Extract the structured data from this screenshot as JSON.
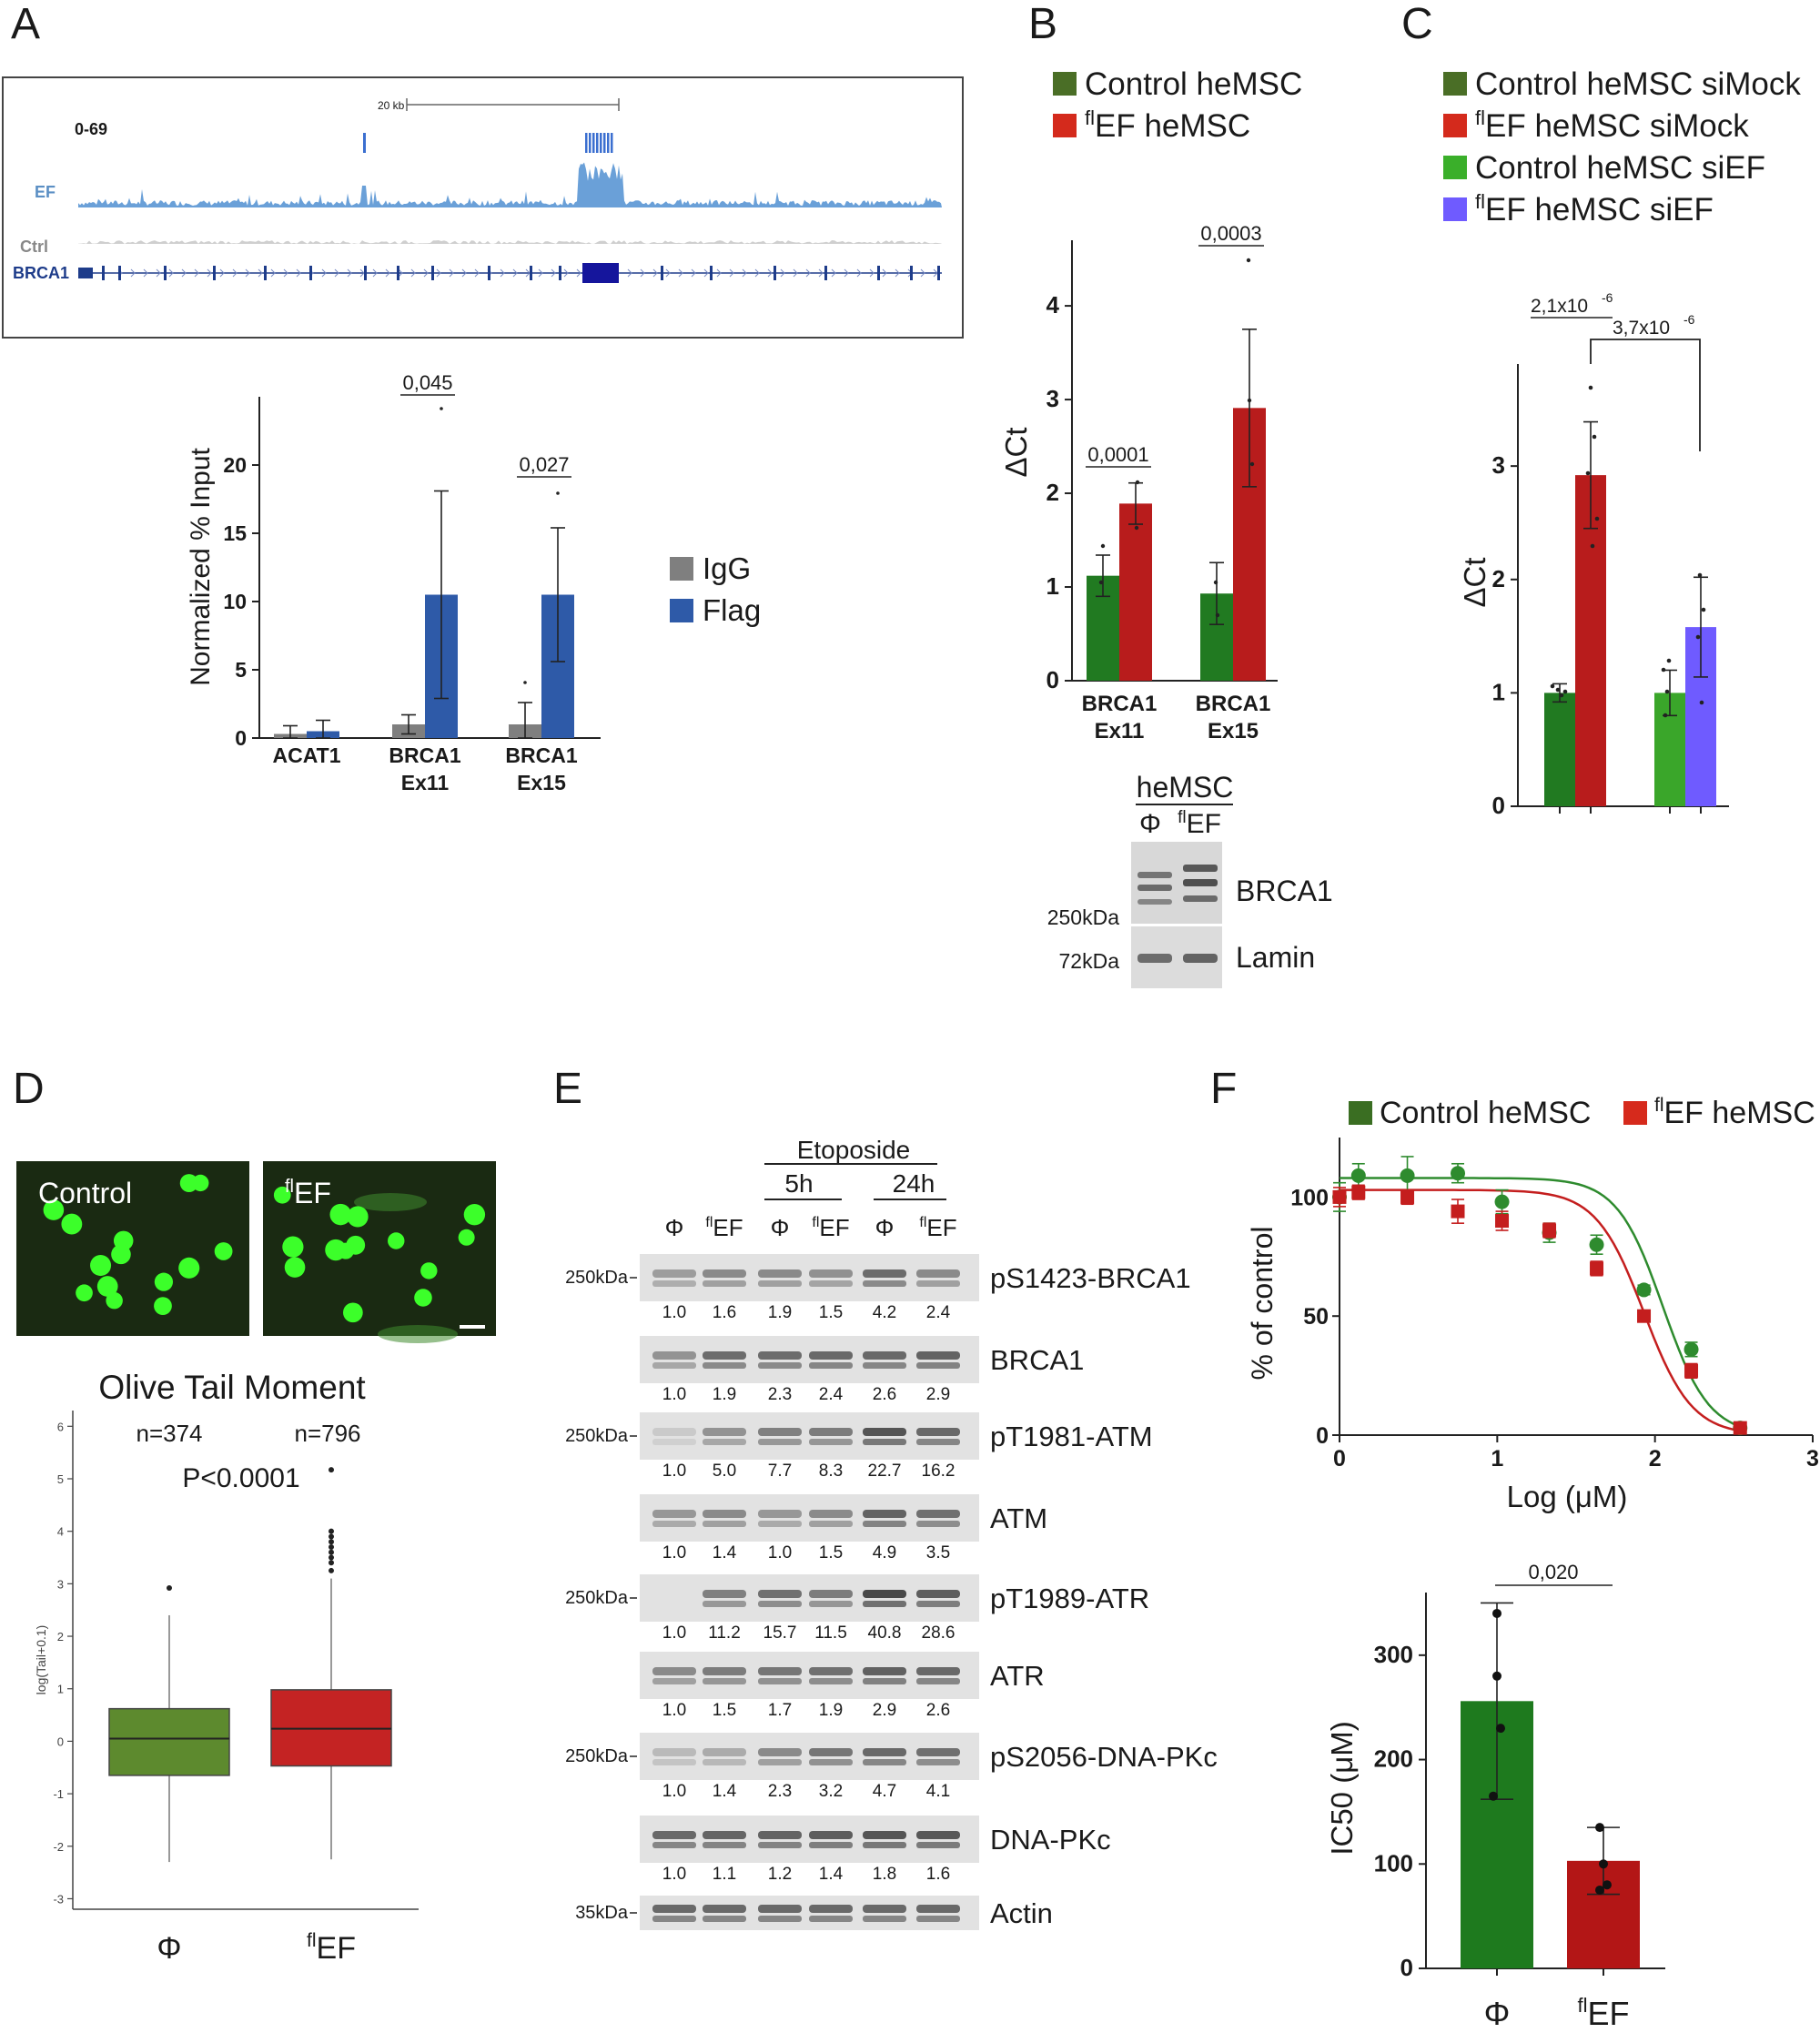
{
  "panels": {
    "A": {
      "letter": "A",
      "track": {
        "range_label": "0-69",
        "scale_label": "20 kb",
        "tracks": [
          "EF",
          "Ctrl",
          "BRCA1"
        ]
      },
      "chart_data": {
        "type": "bar",
        "ylabel": "Normalized % Input",
        "ylim": [
          0,
          25
        ],
        "yticks": [
          "0",
          "5",
          "10",
          "15",
          "20"
        ],
        "categories": [
          "ACAT1",
          "BRCA1\nEx11",
          "BRCA1\nEx15"
        ],
        "category_lines": [
          [
            "ACAT1"
          ],
          [
            "BRCA1",
            "Ex11"
          ],
          [
            "BRCA1",
            "Ex15"
          ]
        ],
        "series": [
          {
            "name": "IgG",
            "color": "#7f7f7f",
            "values": [
              0.3,
              1.0,
              1.0
            ],
            "err": [
              0.6,
              0.7,
              1.6
            ]
          },
          {
            "name": "Flag",
            "color": "#2e5aa8",
            "values": [
              0.5,
              10.5,
              10.5
            ],
            "err": [
              0.8,
              7.6,
              4.9
            ]
          }
        ],
        "pvalues": [
          "0,045",
          "0,027"
        ],
        "legend": [
          "IgG",
          "Flag"
        ]
      }
    },
    "B": {
      "letter": "B",
      "chart_data": {
        "type": "bar",
        "ylabel": "ΔCt",
        "ylim": [
          0,
          4.7
        ],
        "yticks": [
          "0",
          "1",
          "2",
          "3",
          "4"
        ],
        "category_lines": [
          [
            "BRCA1",
            "Ex11"
          ],
          [
            "BRCA1",
            "Ex15"
          ]
        ],
        "series": [
          {
            "name": "Control heMSC",
            "color": "#217a21",
            "values": [
              1.12,
              0.93
            ],
            "err": [
              0.22,
              0.33
            ]
          },
          {
            "name": "flEF heMSC",
            "color": "#b81c1c",
            "values": [
              1.89,
              2.91
            ],
            "err": [
              0.22,
              0.84
            ]
          }
        ],
        "pvalues": [
          "0,0001",
          "0,0003"
        ],
        "legend": [
          {
            "sup": "",
            "text": "Control heMSC",
            "color": "#4a6e26"
          },
          {
            "sup": "fl",
            "text": "EF heMSC",
            "color": "#d42a1c"
          }
        ]
      },
      "blot": {
        "title": "heMSC",
        "lanes": [
          "Φ",
          "EF"
        ],
        "lane_sup": [
          "",
          "fl"
        ],
        "bands": [
          "BRCA1",
          "Lamin"
        ],
        "markers": [
          "250kDa",
          "72kDa"
        ]
      }
    },
    "C": {
      "letter": "C",
      "chart_data": {
        "type": "bar",
        "ylabel": "ΔCt",
        "ylim": [
          0,
          3.9
        ],
        "yticks": [
          "0",
          "1",
          "2",
          "3"
        ],
        "series": [
          {
            "name": "Control heMSC siMock",
            "color": "#217a21",
            "value": 1.0,
            "err": 0.08
          },
          {
            "name": "flEF heMSC siMock",
            "color": "#b81c1c",
            "value": 2.92,
            "err": 0.47
          },
          {
            "name": "Control heMSC siEF",
            "color": "#3aa62a",
            "value": 1.0,
            "err": 0.2
          },
          {
            "name": "flEF heMSC siEF",
            "color": "#6f5bff",
            "value": 1.58,
            "err": 0.44
          }
        ],
        "pvalues": [
          {
            "mant": "2,1x10",
            "exp": "-6"
          },
          {
            "mant": "3,7x10",
            "exp": "-6"
          }
        ],
        "legend": [
          {
            "sup": "",
            "text": "Control heMSC siMock",
            "color": "#4a6e26"
          },
          {
            "sup": "fl",
            "text": "EF heMSC siMock",
            "color": "#d42a1c"
          },
          {
            "sup": "",
            "text": "Control heMSC siEF",
            "color": "#3aaf2a"
          },
          {
            "sup": "fl",
            "text": "EF heMSC siEF",
            "color": "#6f5bff"
          }
        ]
      }
    },
    "D": {
      "letter": "D",
      "images": [
        {
          "label": "Control",
          "sup": ""
        },
        {
          "label": "EF",
          "sup": "fl"
        }
      ],
      "chart_data": {
        "type": "box",
        "title": "Olive Tail Moment",
        "ylabel": "log(Tail+0.1)",
        "ylim": [
          -3.2,
          6.3
        ],
        "yticks": [
          "-3",
          "-2",
          "-1",
          "0",
          "1",
          "2",
          "3",
          "4",
          "5",
          "6"
        ],
        "n_labels": [
          "n=374",
          "n=796"
        ],
        "pvalue": "P<0.0001",
        "groups": [
          {
            "name": "Φ",
            "sup": "",
            "color": "#5d8a2e",
            "min": -2.3,
            "q1": -0.65,
            "median": 0.05,
            "q3": 0.62,
            "max": 2.4,
            "outliers": [
              2.92
            ]
          },
          {
            "name": "EF",
            "sup": "fl",
            "color": "#c42323",
            "min": -2.25,
            "q1": -0.47,
            "median": 0.24,
            "q3": 0.98,
            "max": 3.1,
            "outliers": [
              3.25,
              3.4,
              3.5,
              3.6,
              3.7,
              3.8,
              3.9,
              4.0,
              5.17
            ]
          }
        ]
      }
    },
    "E": {
      "letter": "E",
      "treatment": "Etoposide",
      "timepoints": [
        "5h",
        "24h"
      ],
      "lanes": [
        {
          "sym": "Φ",
          "sup": ""
        },
        {
          "sym": "EF",
          "sup": "fl"
        },
        {
          "sym": "Φ",
          "sup": ""
        },
        {
          "sym": "EF",
          "sup": "fl"
        },
        {
          "sym": "Φ",
          "sup": ""
        },
        {
          "sym": "EF",
          "sup": "fl"
        }
      ],
      "blots": [
        {
          "name": "pS1423-BRCA1",
          "marker": "250kDa",
          "values": [
            "1.0",
            "1.6",
            "1.9",
            "1.5",
            "4.2",
            "2.4"
          ],
          "intensity": [
            0.35,
            0.45,
            0.45,
            0.42,
            0.6,
            0.45
          ]
        },
        {
          "name": "BRCA1",
          "marker": "",
          "values": [
            "1.0",
            "1.9",
            "2.3",
            "2.4",
            "2.6",
            "2.9"
          ],
          "intensity": [
            0.4,
            0.6,
            0.6,
            0.62,
            0.62,
            0.65
          ]
        },
        {
          "name": "pT1981-ATM",
          "marker": "250kDa",
          "values": [
            "1.0",
            "5.0",
            "7.7",
            "8.3",
            "22.7",
            "16.2"
          ],
          "intensity": [
            0.12,
            0.4,
            0.5,
            0.52,
            0.72,
            0.62
          ]
        },
        {
          "name": "ATM",
          "marker": "",
          "values": [
            "1.0",
            "1.4",
            "1.0",
            "1.5",
            "4.9",
            "3.5"
          ],
          "intensity": [
            0.38,
            0.45,
            0.38,
            0.45,
            0.65,
            0.58
          ]
        },
        {
          "name": "pT1989-ATR",
          "marker": "250kDa",
          "values": [
            "1.0",
            "11.2",
            "15.7",
            "11.5",
            "40.8",
            "28.6"
          ],
          "intensity": [
            0.05,
            0.5,
            0.58,
            0.52,
            0.78,
            0.68
          ]
        },
        {
          "name": "ATR",
          "marker": "",
          "values": [
            "1.0",
            "1.5",
            "1.7",
            "1.9",
            "2.9",
            "2.6"
          ],
          "intensity": [
            0.45,
            0.52,
            0.55,
            0.58,
            0.66,
            0.62
          ]
        },
        {
          "name": "pS2056-DNA-PKc",
          "marker": "250kDa",
          "values": [
            "1.0",
            "1.4",
            "2.3",
            "3.2",
            "4.7",
            "4.1"
          ],
          "intensity": [
            0.2,
            0.28,
            0.45,
            0.55,
            0.62,
            0.58
          ]
        },
        {
          "name": "DNA-PKc",
          "marker": "",
          "values": [
            "1.0",
            "1.1",
            "1.2",
            "1.4",
            "1.8",
            "1.6"
          ],
          "intensity": [
            0.62,
            0.64,
            0.65,
            0.68,
            0.72,
            0.7
          ]
        },
        {
          "name": "Actin",
          "marker": "35kDa",
          "values": [],
          "intensity": [
            0.62,
            0.62,
            0.62,
            0.62,
            0.62,
            0.62
          ]
        }
      ]
    },
    "F": {
      "letter": "F",
      "curve": {
        "type": "scatter",
        "xlabel": "Log (μM)",
        "ylabel": "% of control",
        "xlim": [
          0,
          3
        ],
        "ylim": [
          0,
          125
        ],
        "xticks": [
          "0",
          "1",
          "2",
          "3"
        ],
        "yticks": [
          "0",
          "50",
          "100"
        ],
        "series": [
          {
            "name": "Control heMSC",
            "color": "#2e8b2e",
            "marker": "circle",
            "x": [
              0,
              0.12,
              0.43,
              0.75,
              1.03,
              1.33,
              1.63,
              1.93,
              2.23,
              2.54
            ],
            "y": [
              100,
              109,
              109,
              110,
              98,
              85,
              80,
              61,
              36,
              3
            ],
            "err": [
              6,
              5,
              8,
              4,
              5,
              4,
              4,
              2,
              3,
              1
            ]
          },
          {
            "name": "flEF heMSC",
            "color": "#c41e1e",
            "marker": "square",
            "x": [
              0,
              0.12,
              0.43,
              0.75,
              1.03,
              1.33,
              1.63,
              1.93,
              2.23,
              2.54
            ],
            "y": [
              100,
              102,
              100,
              94,
              90,
              86,
              70,
              50,
              27,
              3
            ],
            "err": [
              4,
              3,
              3,
              5,
              4,
              3,
              3,
              1,
              3,
              1
            ]
          }
        ],
        "fits": [
          {
            "top": 108,
            "ic50": 2.05,
            "hill": 1.3,
            "x0": 0,
            "x1": 2.53
          },
          {
            "top": 103,
            "ic50": 1.93,
            "hill": 1.25,
            "x0": 0,
            "x1": 2.53
          }
        ],
        "legend": [
          {
            "sup": "",
            "text": "Control heMSC",
            "color": "#3a6e22"
          },
          {
            "sup": "fl",
            "text": "EF heMSC",
            "color": "#d62a1c"
          }
        ]
      },
      "chart_data": {
        "type": "bar",
        "ylabel": "IC50 (μM)",
        "ylim": [
          0,
          360
        ],
        "yticks": [
          "0",
          "100",
          "200",
          "300"
        ],
        "categories": [
          {
            "sym": "Φ",
            "sup": ""
          },
          {
            "sym": "EF",
            "sup": "fl"
          }
        ],
        "values": [
          256,
          103
        ],
        "err": [
          94,
          32
        ],
        "colors": [
          "#1e7a1e",
          "#b31616"
        ],
        "pvalue": "0,020",
        "points": [
          [
            340,
            280,
            230,
            165
          ],
          [
            135,
            100,
            80,
            75
          ]
        ]
      }
    }
  }
}
